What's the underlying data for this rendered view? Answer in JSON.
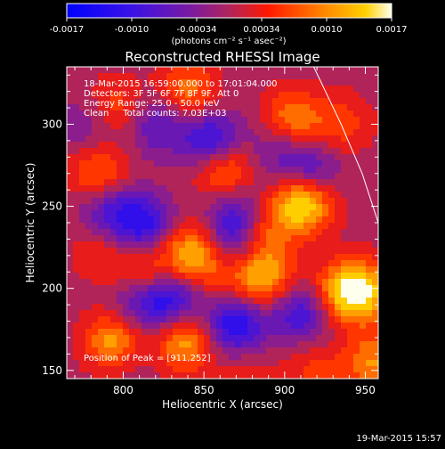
{
  "chart_data": {
    "type": "heatmap",
    "title": "Reconstructed RHESSI Image",
    "xlabel": "Heliocentric X (arcsec)",
    "ylabel": "Heliocentric Y (arcsec)",
    "xlim": [
      765,
      958
    ],
    "ylim": [
      145,
      335
    ],
    "xticks": [
      800,
      850,
      900,
      950
    ],
    "yticks": [
      150,
      200,
      250,
      300
    ],
    "colorbar": {
      "ticks": [
        "-0.0017",
        "-0.0010",
        "-0.00034",
        "0.00034",
        "0.0010",
        "0.0017"
      ],
      "range": [
        -0.0017,
        0.0017
      ],
      "unit_label": "(photons cm⁻² s⁻¹ asec⁻²)"
    },
    "annotations": [
      "18-Mar-2015 16:59:00.000 to 17:01:04.000",
      "Detectors: 3F 5F 6F 7F 8F 9F, Att 0",
      "Energy Range: 25.0 - 50.0 keV",
      "Clean     Total counts: 7.03E+03"
    ],
    "peak_label": "Position of Peak = [911,252]",
    "peak": [
      911,
      252
    ],
    "grid": false,
    "limb": [
      [
        918,
        335
      ],
      [
        935,
        300
      ],
      [
        948,
        270
      ],
      [
        958,
        240
      ]
    ],
    "sources": [
      {
        "x": 911,
        "y": 252,
        "value": 0.0017
      },
      {
        "x": 863,
        "y": 272,
        "value": 0.0011
      },
      {
        "x": 843,
        "y": 220,
        "value": 0.0014
      },
      {
        "x": 812,
        "y": 212,
        "value": 0.0008
      },
      {
        "x": 795,
        "y": 168,
        "value": 0.0013
      },
      {
        "x": 838,
        "y": 168,
        "value": 0.0012
      },
      {
        "x": 888,
        "y": 208,
        "value": 0.0012
      },
      {
        "x": 935,
        "y": 198,
        "value": 0.0011
      },
      {
        "x": 950,
        "y": 198,
        "value": 0.0012
      },
      {
        "x": 955,
        "y": 155,
        "value": 0.001
      },
      {
        "x": 785,
        "y": 268,
        "value": 0.001
      },
      {
        "x": 795,
        "y": 310,
        "value": 0.0007
      },
      {
        "x": 840,
        "y": 320,
        "value": 0.0009
      },
      {
        "x": 905,
        "y": 303,
        "value": 0.001
      },
      {
        "x": 935,
        "y": 300,
        "value": 0.0006
      },
      {
        "x": 918,
        "y": 150,
        "value": 0.0005
      },
      {
        "x": 875,
        "y": 155,
        "value": 0.0005
      },
      {
        "x": 885,
        "y": 235,
        "value": 0.0008
      },
      {
        "x": 785,
        "y": 222,
        "value": 0.0004
      },
      {
        "x": 868,
        "y": 198,
        "value": 0.0007
      },
      {
        "x": 855,
        "y": 290,
        "value": -0.0012
      },
      {
        "x": 822,
        "y": 300,
        "value": -0.0008
      },
      {
        "x": 812,
        "y": 238,
        "value": -0.0012
      },
      {
        "x": 790,
        "y": 250,
        "value": -0.0009
      },
      {
        "x": 870,
        "y": 232,
        "value": -0.001
      },
      {
        "x": 870,
        "y": 250,
        "value": -0.0006
      },
      {
        "x": 830,
        "y": 193,
        "value": -0.0012
      },
      {
        "x": 808,
        "y": 190,
        "value": -0.0007
      },
      {
        "x": 868,
        "y": 185,
        "value": -0.0011
      },
      {
        "x": 872,
        "y": 170,
        "value": -0.0008
      },
      {
        "x": 910,
        "y": 185,
        "value": -0.001
      },
      {
        "x": 915,
        "y": 272,
        "value": -0.0009
      },
      {
        "x": 895,
        "y": 285,
        "value": -0.0005
      },
      {
        "x": 780,
        "y": 300,
        "value": -0.0005
      },
      {
        "x": 805,
        "y": 160,
        "value": -0.0003
      }
    ]
  },
  "footer": {
    "timestamp": "19-Mar-2015 15:57"
  }
}
